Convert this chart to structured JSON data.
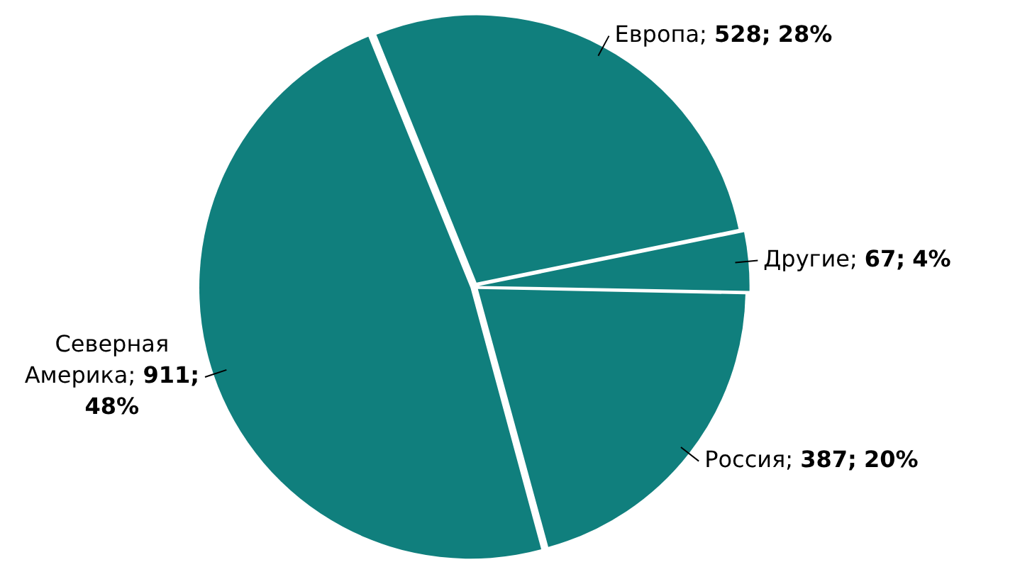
{
  "chart_data": {
    "type": "pie",
    "categories": [
      "Европа",
      "Другие",
      "Россия",
      "Северная Америка"
    ],
    "values": [
      528,
      67,
      387,
      911
    ],
    "colors": [
      "#107f7d",
      "#107f7d",
      "#107f7d",
      "#107f7d"
    ],
    "value_labels": [
      "; 528; 28%",
      "; 67; 4%",
      "; 387; 20%",
      "; 911; 48%"
    ],
    "legend": false
  }
}
